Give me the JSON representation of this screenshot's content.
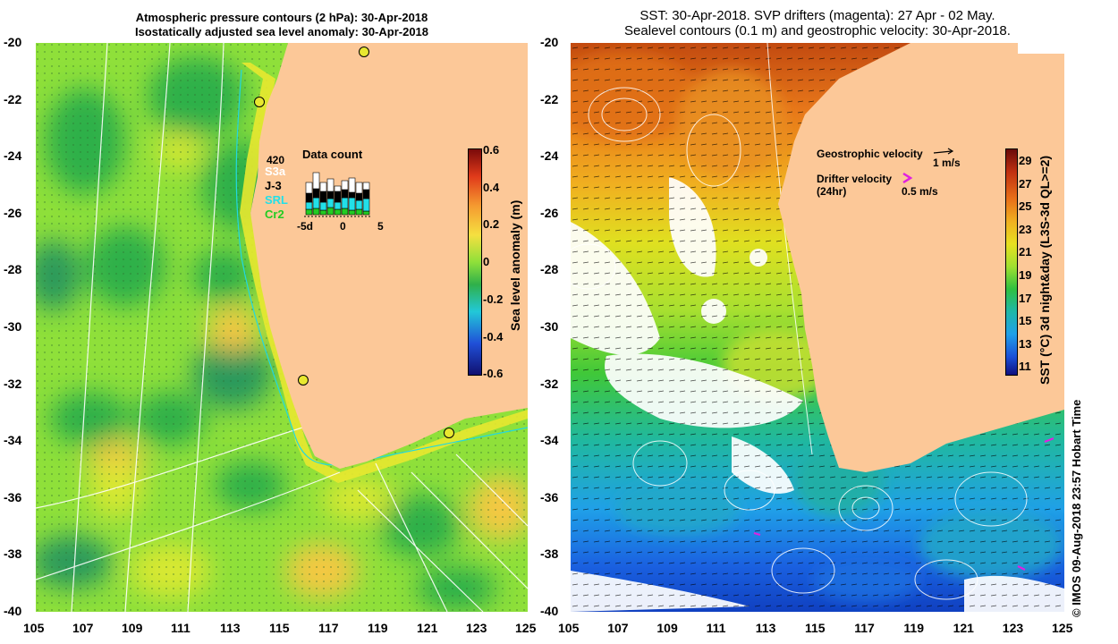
{
  "left_panel": {
    "title_line1": "Atmospheric pressure contours (2 hPa): 30-Apr-2018",
    "title_line2": "Isostatically adjusted sea level anomaly: 30-Apr-2018",
    "colorbar_label": "Sea level anomaly (m)",
    "colorbar_ticks": [
      "0.6",
      "0.4",
      "0.2",
      "0",
      "-0.2",
      "-0.4",
      "-0.6"
    ],
    "inset": {
      "title": "Data count",
      "max": "420",
      "sat_labels": [
        "S3a",
        "J-3",
        "SRL",
        "Cr2"
      ],
      "sat_colors": [
        "#ffffff",
        "#000000",
        "#22e0e8",
        "#22cc22"
      ],
      "x_ticks": [
        "-5d",
        "0",
        "5"
      ]
    }
  },
  "right_panel": {
    "title_line1": "SST: 30-Apr-2018. SVP drifters (magenta): 27 Apr - 02 May.",
    "title_line2": "Sealevel contours (0.1 m) and geostrophic velocity: 30-Apr-2018.",
    "colorbar_label": "SST (°C) 3d night&day (L3S-3d QL>=2)",
    "colorbar_ticks": [
      "29",
      "27",
      "25",
      "23",
      "21",
      "19",
      "17",
      "15",
      "13",
      "11"
    ],
    "legend": {
      "geo_label": "Geostrophic velocity",
      "geo_scale": "1 m/s",
      "drifter_label": "Drifter velocity",
      "drifter_sub": "(24hr)",
      "drifter_scale": "0.5 m/s"
    }
  },
  "axes": {
    "lat_ticks": [
      "-20",
      "-22",
      "-24",
      "-26",
      "-28",
      "-30",
      "-32",
      "-34",
      "-36",
      "-38",
      "-40"
    ],
    "lon_ticks": [
      "105",
      "107",
      "109",
      "111",
      "113",
      "115",
      "117",
      "119",
      "121",
      "123",
      "125"
    ]
  },
  "credit": "© IMOS 09-Aug-2018 23:57 Hobart Time",
  "colors": {
    "land": "#fcc898",
    "sla_pos": "#f5c842",
    "sla_zero": "#8fe03a",
    "sst_warm": "#c24a10",
    "sst_cool": "#1a60e0"
  }
}
